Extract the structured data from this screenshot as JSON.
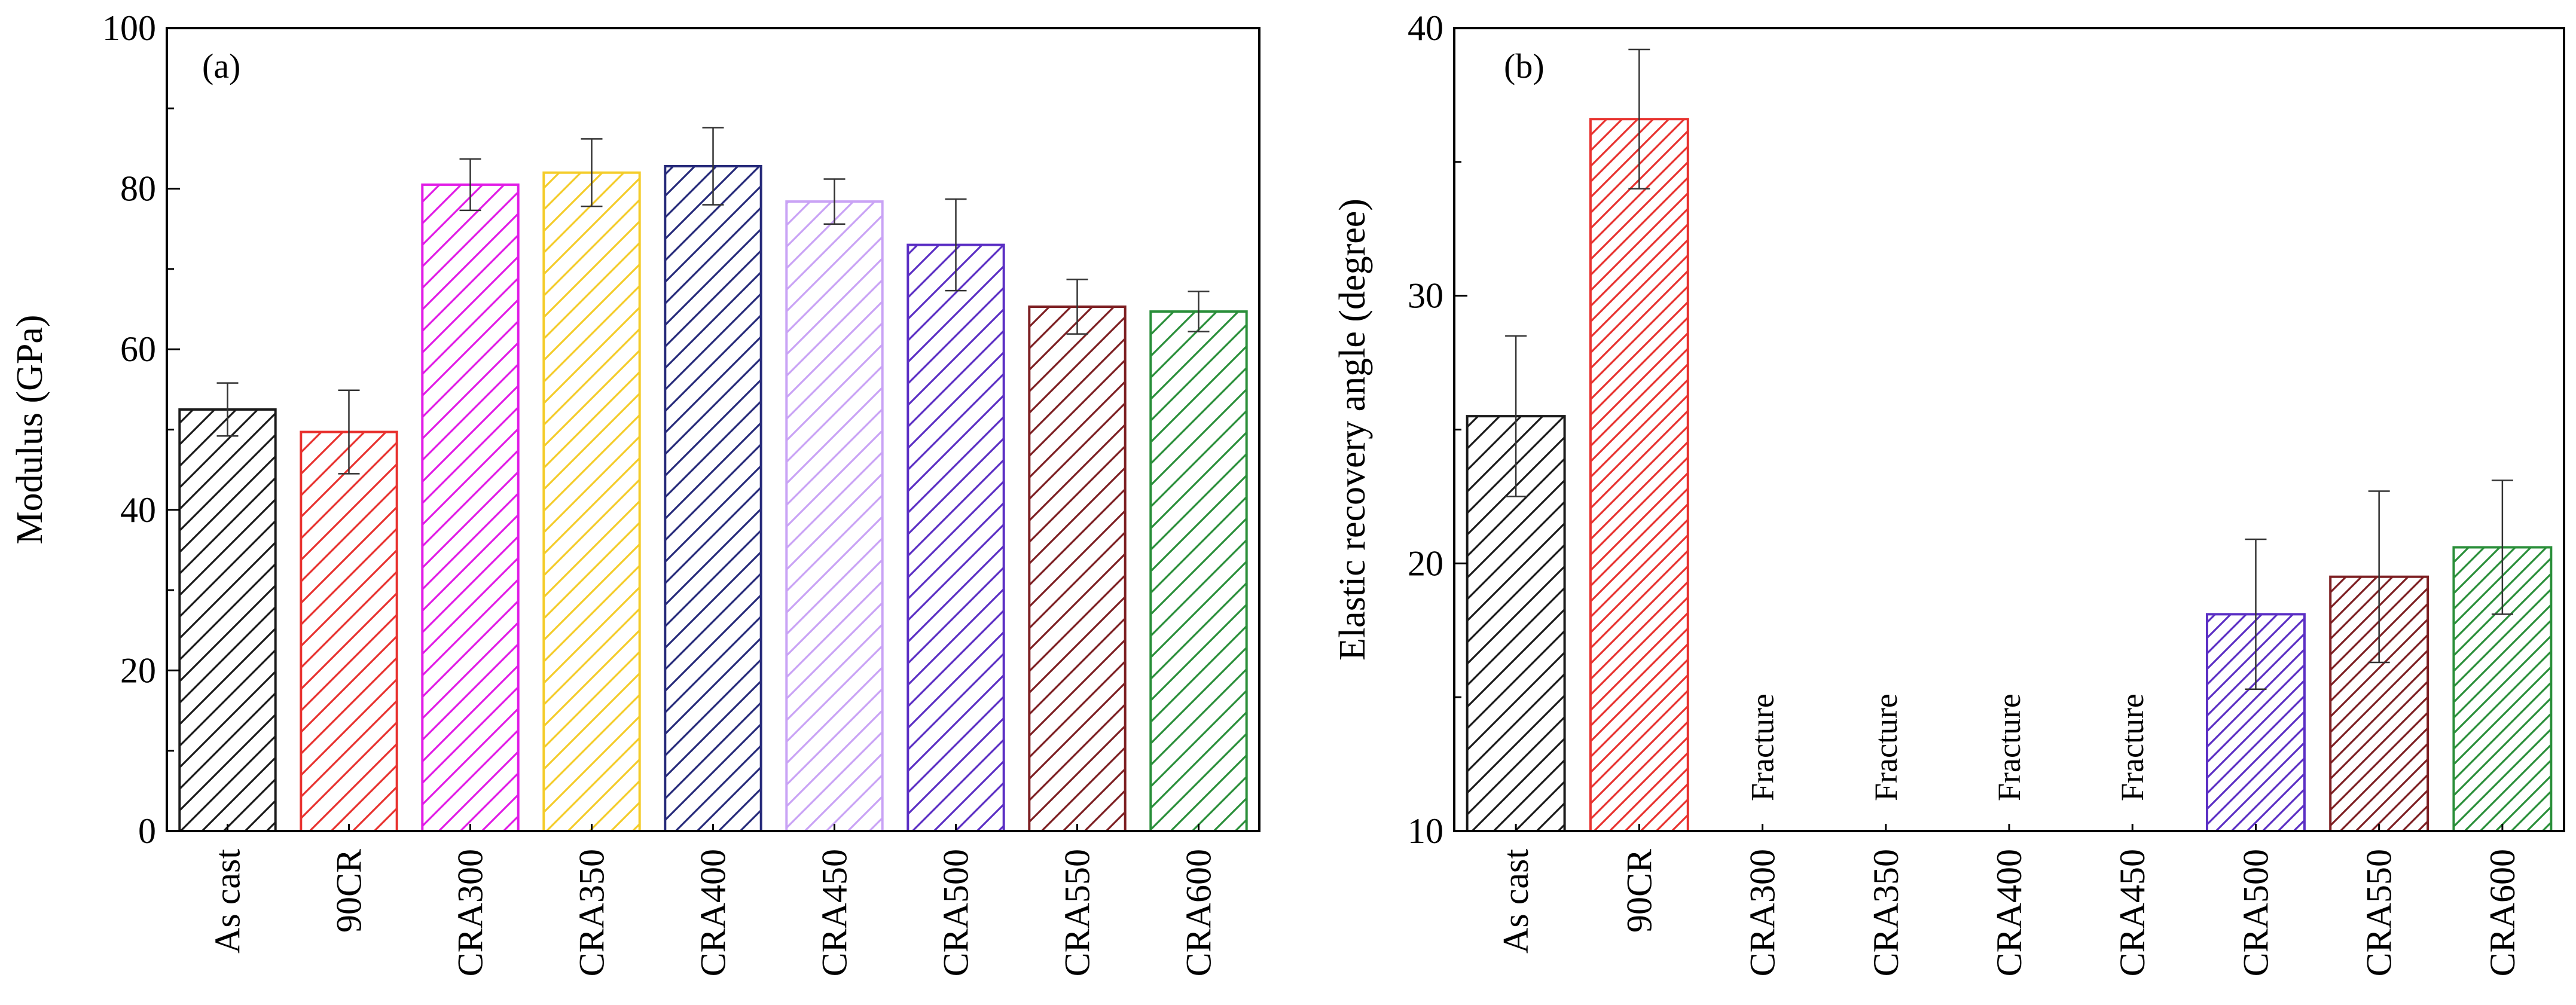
{
  "chart_data": [
    {
      "type": "bar",
      "panel_label": "(a)",
      "ylabel": "Modulus (GPa)",
      "xlabel": "",
      "ylim": [
        0,
        100
      ],
      "yticks": [
        0,
        20,
        40,
        60,
        80,
        100
      ],
      "yminor_step": 10,
      "grid": false,
      "categories": [
        "As cast",
        "90CR",
        "CRA300",
        "CRA350",
        "CRA400",
        "CRA450",
        "CRA500",
        "CRA550",
        "CRA600"
      ],
      "values": [
        52.5,
        49.7,
        80.5,
        82.0,
        82.8,
        78.4,
        73.0,
        65.3,
        64.7
      ],
      "errors": [
        3.3,
        5.2,
        3.2,
        4.2,
        4.8,
        2.8,
        5.7,
        3.4,
        2.5
      ],
      "notes": [
        null,
        null,
        null,
        null,
        null,
        null,
        null,
        null,
        null
      ],
      "colors": [
        "#1a1a1a",
        "#e8322f",
        "#e11be6",
        "#f4cc2a",
        "#262a7a",
        "#c9a3f5",
        "#5b2fc4",
        "#7d1f22",
        "#2a8f3a"
      ],
      "hatch": [
        "wide",
        "wide",
        "wide",
        "wide",
        "wide",
        "wide",
        "wide",
        "wide",
        "wide"
      ]
    },
    {
      "type": "bar",
      "panel_label": "(b)",
      "ylabel": "Elastic recovery angle (degree)",
      "xlabel": "",
      "ylim": [
        10,
        40
      ],
      "yticks": [
        10,
        20,
        30,
        40
      ],
      "yminor_step": 5,
      "grid": false,
      "categories": [
        "As cast",
        "90CR",
        "CRA300",
        "CRA350",
        "CRA400",
        "CRA450",
        "CRA500",
        "CRA550",
        "CRA600"
      ],
      "values": [
        25.5,
        36.6,
        null,
        null,
        null,
        null,
        18.1,
        19.5,
        20.6
      ],
      "errors": [
        3.0,
        2.6,
        null,
        null,
        null,
        null,
        2.8,
        3.2,
        2.5
      ],
      "notes": [
        null,
        null,
        "Fracture",
        "Fracture",
        "Fracture",
        "Fracture",
        null,
        null,
        null
      ],
      "colors": [
        "#1a1a1a",
        "#e8322f",
        "#e11be6",
        "#f4cc2a",
        "#262a7a",
        "#c9a3f5",
        "#5b2fc4",
        "#7d1f22",
        "#2a8f3a"
      ],
      "hatch": [
        "wide",
        "narrow",
        "wide",
        "wide",
        "wide",
        "wide",
        "narrow",
        "narrow",
        "narrow"
      ]
    }
  ]
}
